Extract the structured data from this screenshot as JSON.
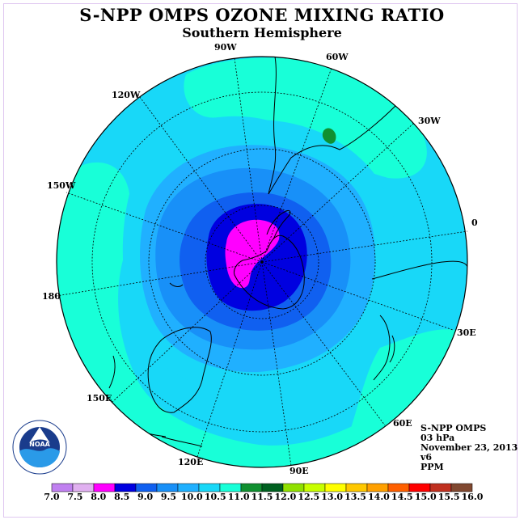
{
  "title": "S-NPP OMPS OZONE MIXING RATIO",
  "subtitle": "Southern Hemisphere",
  "longitude_labels": [
    "90W",
    "60W",
    "120W",
    "30W",
    "150W",
    "0",
    "180",
    "30E",
    "150E",
    "60E",
    "120E",
    "90E"
  ],
  "info": {
    "instrument": "S-NPP OMPS",
    "level": "03 hPa",
    "date": "November 23, 2013",
    "version": "v6",
    "unit": "PPM"
  },
  "logo": {
    "text": "NOAA"
  },
  "colorbar": {
    "ticks": [
      "7.0",
      "7.5",
      "8.0",
      "8.5",
      "9.0",
      "9.5",
      "10.0",
      "10.5",
      "11.0",
      "11.5",
      "12.0",
      "12.5",
      "13.0",
      "13.5",
      "14.0",
      "14.5",
      "15.0",
      "15.5",
      "16.0"
    ],
    "colors": [
      "#c080f0",
      "#e0b0f0",
      "#ff00ff",
      "#0000e0",
      "#1060f0",
      "#1890f8",
      "#20b0ff",
      "#18d8f8",
      "#18ffd8",
      "#109030",
      "#006020",
      "#90e000",
      "#c8ff00",
      "#ffff00",
      "#ffc800",
      "#ffa000",
      "#ff6000",
      "#ff0000",
      "#c03020",
      "#804830"
    ]
  },
  "colors": {
    "band_10_0": "#20b0ff",
    "band_10_5": "#18d8f8",
    "band_11_0": "#18ffd8",
    "band_9_5": "#1890f8",
    "band_9_0": "#1060f0",
    "band_8_5": "#0000e0",
    "band_8_0": "#ff00ff",
    "band_11_5": "#109030"
  }
}
